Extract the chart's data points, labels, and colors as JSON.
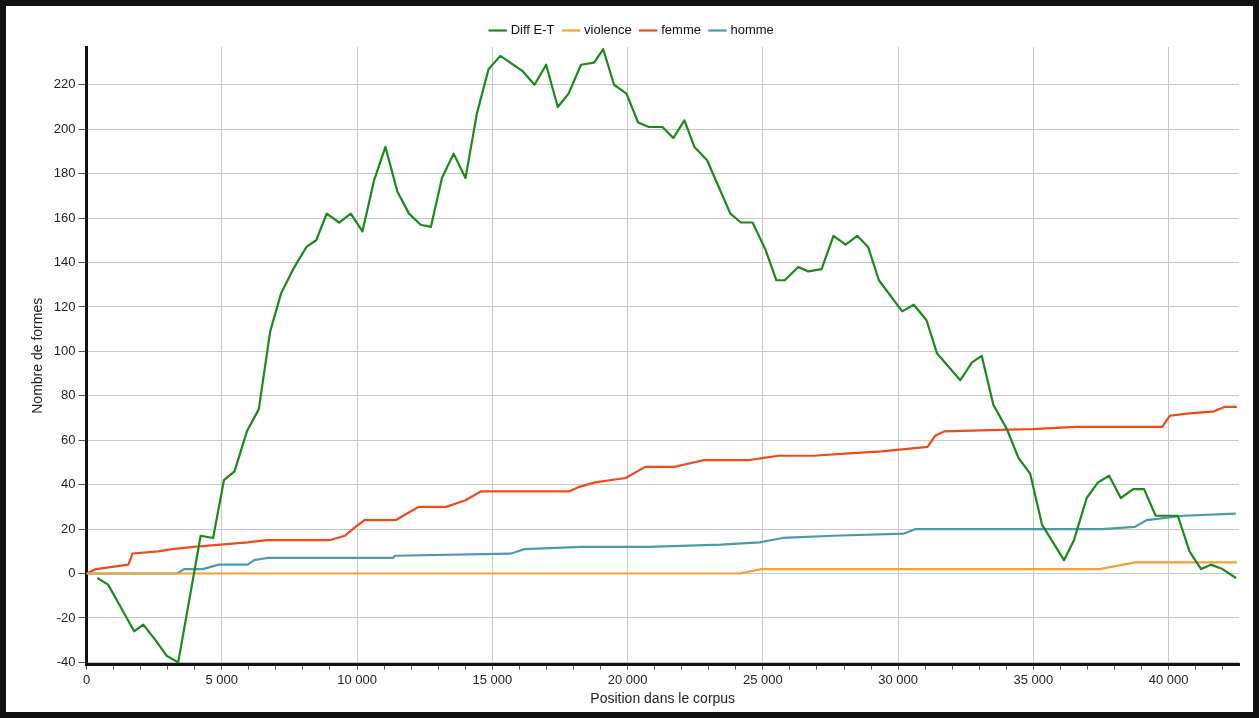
{
  "chart_data": {
    "type": "line",
    "xlabel": "Position dans le corpus",
    "ylabel": "Nombre de formes",
    "xlim": [
      0,
      42600
    ],
    "ylim": [
      -41,
      237
    ],
    "xticks": [
      0,
      {
        "value": 1000,
        "label": null
      },
      {
        "value": 2000,
        "label": null
      },
      {
        "value": 3000,
        "label": null
      },
      {
        "value": 4000,
        "label": null
      },
      {
        "value": 5000,
        "label": "5 000"
      },
      {
        "value": 6000,
        "label": null
      },
      {
        "value": 7000,
        "label": null
      },
      {
        "value": 8000,
        "label": null
      },
      {
        "value": 9000,
        "label": null
      },
      {
        "value": 10000,
        "label": "10 000"
      },
      {
        "value": 11000,
        "label": null
      },
      {
        "value": 12000,
        "label": null
      },
      {
        "value": 13000,
        "label": null
      },
      {
        "value": 14000,
        "label": null
      },
      {
        "value": 15000,
        "label": "15 000"
      },
      {
        "value": 16000,
        "label": null
      },
      {
        "value": 17000,
        "label": null
      },
      {
        "value": 18000,
        "label": null
      },
      {
        "value": 19000,
        "label": null
      },
      {
        "value": 20000,
        "label": "20 000"
      },
      {
        "value": 21000,
        "label": null
      },
      {
        "value": 22000,
        "label": null
      },
      {
        "value": 23000,
        "label": null
      },
      {
        "value": 24000,
        "label": null
      },
      {
        "value": 25000,
        "label": "25 000"
      },
      {
        "value": 26000,
        "label": null
      },
      {
        "value": 27000,
        "label": null
      },
      {
        "value": 28000,
        "label": null
      },
      {
        "value": 29000,
        "label": null
      },
      {
        "value": 30000,
        "label": "30 000"
      },
      {
        "value": 31000,
        "label": null
      },
      {
        "value": 32000,
        "label": null
      },
      {
        "value": 33000,
        "label": null
      },
      {
        "value": 34000,
        "label": null
      },
      {
        "value": 35000,
        "label": "35 000"
      },
      {
        "value": 36000,
        "label": null
      },
      {
        "value": 37000,
        "label": null
      },
      {
        "value": 38000,
        "label": null
      },
      {
        "value": 39000,
        "label": null
      },
      {
        "value": 40000,
        "label": "40 000"
      },
      {
        "value": 41000,
        "label": null
      },
      {
        "value": 42000,
        "label": null
      }
    ],
    "yticks": [
      -40,
      -20,
      0,
      20,
      40,
      60,
      80,
      100,
      120,
      140,
      160,
      180,
      200,
      220
    ],
    "grid": true,
    "legend": "top",
    "marker": "none",
    "line_style": "solid",
    "series": [
      {
        "name": "Diff E-T",
        "color": "#1a8a1a",
        "x": [
          400,
          800,
          1350,
          1760,
          2100,
          2550,
          2960,
          3390,
          4220,
          4680,
          5080,
          5470,
          5930,
          6370,
          6790,
          7190,
          7640,
          8130,
          8490,
          8880,
          9340,
          9770,
          10200,
          10630,
          11050,
          11490,
          11920,
          12350,
          12730,
          13140,
          13570,
          14010,
          14430,
          14860,
          15300,
          16130,
          16560,
          16990,
          17420,
          17820,
          18280,
          18760,
          19100,
          19500,
          19960,
          20390,
          20790,
          21290,
          21690,
          22100,
          22470,
          22940,
          23370,
          23800,
          24190,
          24620,
          25090,
          25500,
          25810,
          26310,
          26680,
          27170,
          27610,
          28060,
          28490,
          28890,
          29290,
          30150,
          30580,
          31050,
          31440,
          32300,
          32730,
          33090,
          33520,
          34020,
          34450,
          34880,
          35320,
          36130,
          36500,
          36970,
          37390,
          37800,
          38230,
          38690,
          39090,
          39520,
          39910,
          40340,
          40770,
          41200,
          41560,
          41990,
          42490
        ],
        "values": [
          -2,
          -5,
          -17,
          -26,
          -23,
          -30,
          -37,
          -40,
          17,
          16,
          42,
          46,
          64,
          74,
          109,
          126,
          137,
          147,
          150,
          162,
          158,
          162,
          154,
          177,
          192,
          172,
          162,
          157,
          156,
          178,
          189,
          178,
          207,
          227,
          233,
          226,
          220,
          229,
          210,
          216,
          229,
          230,
          236,
          220,
          216,
          203,
          201,
          201,
          196,
          204,
          192,
          186,
          174,
          162,
          158,
          158,
          146,
          132,
          132,
          138,
          136,
          137,
          152,
          148,
          152,
          147,
          132,
          118,
          121,
          114,
          99,
          87,
          95,
          98,
          76,
          65,
          52,
          45,
          22,
          6,
          15,
          34,
          41,
          44,
          34,
          38,
          38,
          26,
          26,
          26,
          10,
          2,
          4,
          2,
          -2
        ]
      },
      {
        "name": "violence",
        "color": "#f5a030",
        "x": [
          0,
          24160,
          24940,
          37450,
          38760,
          42520
        ],
        "values": [
          0,
          0,
          2,
          2,
          5,
          5
        ]
      },
      {
        "name": "femme",
        "color": "#f04a1a",
        "x": [
          0,
          350,
          1550,
          1700,
          2650,
          3160,
          3960,
          5960,
          6680,
          8980,
          9550,
          9840,
          10270,
          11420,
          11850,
          12280,
          13290,
          14010,
          14590,
          17860,
          18220,
          18800,
          19930,
          20650,
          21720,
          22800,
          24450,
          25590,
          26880,
          28030,
          29400,
          31090,
          31370,
          31720,
          34940,
          36590,
          38310,
          39760,
          40040,
          40670,
          41680,
          42060,
          42520
        ],
        "values": [
          0,
          2,
          4,
          9,
          10,
          11,
          12,
          14,
          15,
          15,
          17,
          20,
          24,
          24,
          27,
          30,
          30,
          33,
          37,
          37,
          39,
          41,
          43,
          48,
          48,
          51,
          51,
          53,
          53,
          54,
          55,
          57,
          62,
          64,
          65,
          66,
          66,
          66,
          71,
          72,
          73,
          75,
          75
        ]
      },
      {
        "name": "homme",
        "color": "#4a9aaa",
        "x": [
          0,
          3350,
          3610,
          4300,
          4880,
          5960,
          6200,
          6670,
          11330,
          11400,
          15700,
          16200,
          18280,
          20790,
          23450,
          24870,
          25730,
          27600,
          30220,
          30650,
          37530,
          38750,
          39180,
          40550,
          42480
        ],
        "values": [
          0,
          0,
          2,
          2,
          4,
          4,
          6,
          7,
          7,
          8,
          9,
          11,
          12,
          12,
          13,
          14,
          16,
          17,
          18,
          20,
          20,
          21,
          24,
          26,
          27
        ]
      }
    ]
  }
}
